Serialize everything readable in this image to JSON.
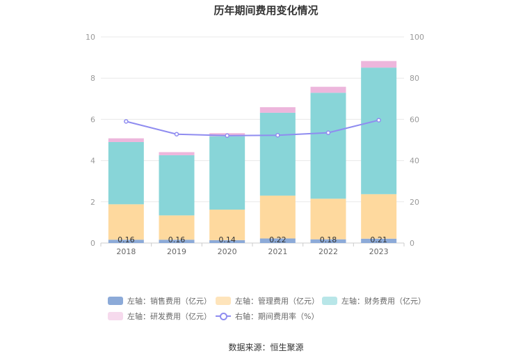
{
  "chart_data": {
    "type": "bar",
    "title": "历年期间费用变化情况",
    "categories": [
      "2018",
      "2019",
      "2020",
      "2021",
      "2022",
      "2023"
    ],
    "left_axis": {
      "min": 0,
      "max": 10,
      "ticks": [
        "0",
        "2",
        "4",
        "6",
        "8",
        "10"
      ]
    },
    "right_axis": {
      "min": 0,
      "max": 100,
      "ticks": [
        "0",
        "20",
        "40",
        "60",
        "80",
        "100"
      ]
    },
    "series": [
      {
        "name": "左轴：销售费用（亿元）",
        "type": "bar",
        "stack": true,
        "color": "#8caad8",
        "values": [
          0.16,
          0.16,
          0.14,
          0.22,
          0.18,
          0.21
        ],
        "labels": [
          "0.16",
          "0.16",
          "0.14",
          "0.22",
          "0.18",
          "0.21"
        ]
      },
      {
        "name": "左轴：管理费用（亿元）",
        "type": "bar",
        "stack": true,
        "color": "#fed99e",
        "values": [
          1.72,
          1.18,
          1.48,
          2.08,
          1.97,
          2.16
        ]
      },
      {
        "name": "左轴：财务费用（亿元）",
        "type": "bar",
        "stack": true,
        "color": "#88d5d8",
        "values": [
          3.02,
          2.92,
          3.56,
          4.02,
          5.14,
          6.14
        ]
      },
      {
        "name": "左轴：研发费用（亿元）",
        "type": "bar",
        "stack": true,
        "color": "#edb6dc",
        "values": [
          0.18,
          0.15,
          0.15,
          0.27,
          0.29,
          0.32
        ]
      },
      {
        "name": "右轴：期间费用率（%）",
        "type": "line",
        "axis": "right",
        "color": "#8f8cf0",
        "values": [
          59,
          52.8,
          52.1,
          52.3,
          53.5,
          59.6
        ]
      }
    ]
  },
  "source_label": "数据来源：恒生聚源"
}
